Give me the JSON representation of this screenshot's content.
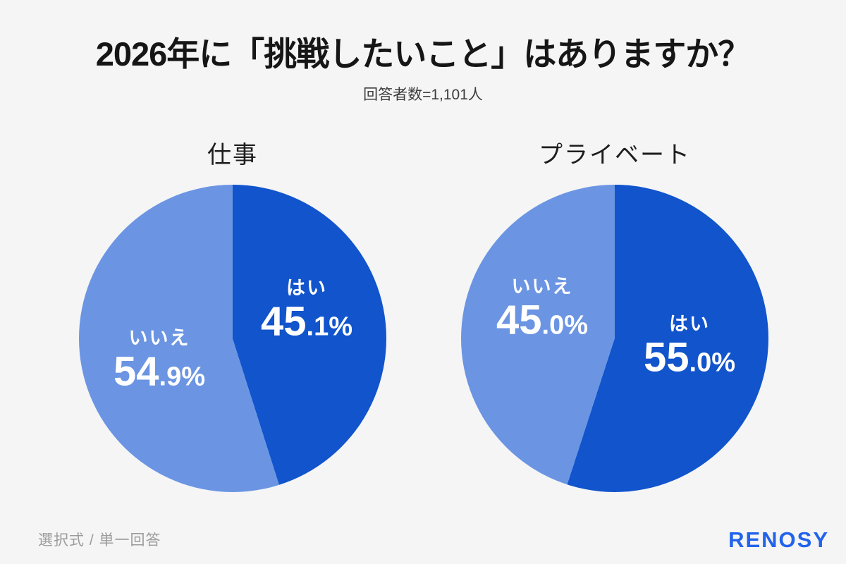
{
  "header": {
    "title": "2026年に「挑戦したいこと」はありますか？",
    "subtitle": "回答者数=1,101人"
  },
  "footer": {
    "note": "選択式 / 単一回答",
    "brand": "RENOSY"
  },
  "colors": {
    "yes_slice": "#1154cc",
    "no_slice": "#6b95e3",
    "background": "#f5f5f6",
    "brand": "#2263eb"
  },
  "chart_data": [
    {
      "type": "pie",
      "title": "仕事",
      "start_angle_deg": 0,
      "direction": "clockwise",
      "slices": [
        {
          "label": "はい",
          "value": 45.1,
          "color": "#1154cc"
        },
        {
          "label": "いいえ",
          "value": 54.9,
          "color": "#6b95e3"
        }
      ]
    },
    {
      "type": "pie",
      "title": "プライベート",
      "start_angle_deg": 0,
      "direction": "clockwise",
      "slices": [
        {
          "label": "はい",
          "value": 55.0,
          "color": "#1154cc"
        },
        {
          "label": "いいえ",
          "value": 45.0,
          "color": "#6b95e3"
        }
      ]
    }
  ]
}
